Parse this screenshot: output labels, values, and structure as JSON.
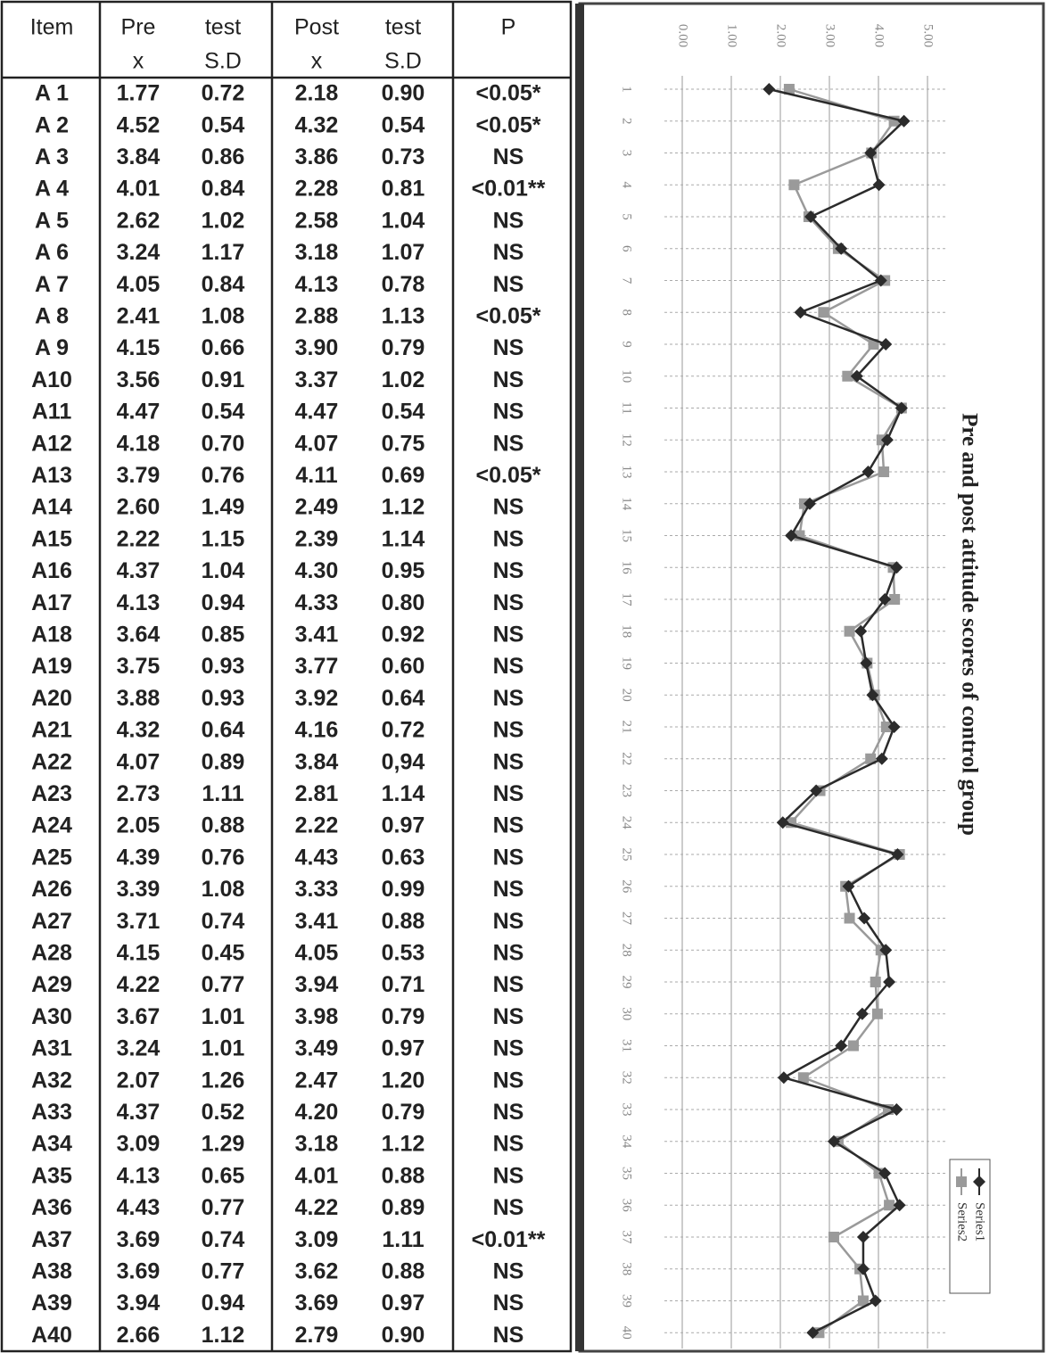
{
  "table": {
    "header": [
      [
        "Item",
        "Pre",
        "test",
        "Post",
        "test",
        "P"
      ],
      [
        "",
        "x",
        "S.D",
        "x",
        "S.D",
        ""
      ]
    ],
    "rows": [
      [
        "A 1",
        "1.77",
        "0.72",
        "2.18",
        "0.90",
        "<0.05*"
      ],
      [
        "A 2",
        "4.52",
        "0.54",
        "4.32",
        "0.54",
        "<0.05*"
      ],
      [
        "A 3",
        "3.84",
        "0.86",
        "3.86",
        "0.73",
        "NS"
      ],
      [
        "A 4",
        "4.01",
        "0.84",
        "2.28",
        "0.81",
        "<0.01**"
      ],
      [
        "A 5",
        "2.62",
        "1.02",
        "2.58",
        "1.04",
        "NS"
      ],
      [
        "A 6",
        "3.24",
        "1.17",
        "3.18",
        "1.07",
        "NS"
      ],
      [
        "A 7",
        "4.05",
        "0.84",
        "4.13",
        "0.78",
        "NS"
      ],
      [
        "A 8",
        "2.41",
        "1.08",
        "2.88",
        "1.13",
        "<0.05*"
      ],
      [
        "A 9",
        "4.15",
        "0.66",
        "3.90",
        "0.79",
        "NS"
      ],
      [
        "A10",
        "3.56",
        "0.91",
        "3.37",
        "1.02",
        "NS"
      ],
      [
        "A11",
        "4.47",
        "0.54",
        "4.47",
        "0.54",
        "NS"
      ],
      [
        "A12",
        "4.18",
        "0.70",
        "4.07",
        "0.75",
        "NS"
      ],
      [
        "A13",
        "3.79",
        "0.76",
        "4.11",
        "0.69",
        "<0.05*"
      ],
      [
        "A14",
        "2.60",
        "1.49",
        "2.49",
        "1.12",
        "NS"
      ],
      [
        "A15",
        "2.22",
        "1.15",
        "2.39",
        "1.14",
        "NS"
      ],
      [
        "A16",
        "4.37",
        "1.04",
        "4.30",
        "0.95",
        "NS"
      ],
      [
        "A17",
        "4.13",
        "0.94",
        "4.33",
        "0.80",
        "NS"
      ],
      [
        "A18",
        "3.64",
        "0.85",
        "3.41",
        "0.92",
        "NS"
      ],
      [
        "A19",
        "3.75",
        "0.93",
        "3.77",
        "0.60",
        "NS"
      ],
      [
        "A20",
        "3.88",
        "0.93",
        "3.92",
        "0.64",
        "NS"
      ],
      [
        "A21",
        "4.32",
        "0.64",
        "4.16",
        "0.72",
        "NS"
      ],
      [
        "A22",
        "4.07",
        "0.89",
        "3.84",
        "0,94",
        "NS"
      ],
      [
        "A23",
        "2.73",
        "1.11",
        "2.81",
        "1.14",
        "NS"
      ],
      [
        "A24",
        "2.05",
        "0.88",
        "2.22",
        "0.97",
        "NS"
      ],
      [
        "A25",
        "4.39",
        "0.76",
        "4.43",
        "0.63",
        "NS"
      ],
      [
        "A26",
        "3.39",
        "1.08",
        "3.33",
        "0.99",
        "NS"
      ],
      [
        "A27",
        "3.71",
        "0.74",
        "3.41",
        "0.88",
        "NS"
      ],
      [
        "A28",
        "4.15",
        "0.45",
        "4.05",
        "0.53",
        "NS"
      ],
      [
        "A29",
        "4.22",
        "0.77",
        "3.94",
        "0.71",
        "NS"
      ],
      [
        "A30",
        "3.67",
        "1.01",
        "3.98",
        "0.79",
        "NS"
      ],
      [
        "A31",
        "3.24",
        "1.01",
        "3.49",
        "0.97",
        "NS"
      ],
      [
        "A32",
        "2.07",
        "1.26",
        "2.47",
        "1.20",
        "NS"
      ],
      [
        "A33",
        "4.37",
        "0.52",
        "4.20",
        "0.79",
        "NS"
      ],
      [
        "A34",
        "3.09",
        "1.29",
        "3.18",
        "1.12",
        "NS"
      ],
      [
        "A35",
        "4.13",
        "0.65",
        "4.01",
        "0.88",
        "NS"
      ],
      [
        "A36",
        "4.43",
        "0.77",
        "4.22",
        "0.89",
        "NS"
      ],
      [
        "A37",
        "3.69",
        "0.74",
        "3.09",
        "1.11",
        "<0.01**"
      ],
      [
        "A38",
        "3.69",
        "0.77",
        "3.62",
        "0.88",
        "NS"
      ],
      [
        "A39",
        "3.94",
        "0.94",
        "3.69",
        "0.97",
        "NS"
      ],
      [
        "A40",
        "2.66",
        "1.12",
        "2.79",
        "0.90",
        "NS"
      ]
    ]
  },
  "chart_data": {
    "type": "line",
    "title": "Pre and post attitude scores of control group",
    "categories": [
      "1",
      "2",
      "3",
      "4",
      "5",
      "6",
      "7",
      "8",
      "9",
      "10",
      "11",
      "12",
      "13",
      "14",
      "15",
      "16",
      "17",
      "18",
      "19",
      "20",
      "21",
      "22",
      "23",
      "24",
      "25",
      "26",
      "27",
      "28",
      "29",
      "30",
      "31",
      "32",
      "33",
      "34",
      "35",
      "36",
      "37",
      "38",
      "39",
      "40"
    ],
    "series": [
      {
        "name": "Series1",
        "color": "#2b2b2b",
        "marker": "diamond",
        "values": [
          1.77,
          4.52,
          3.84,
          4.01,
          2.62,
          3.24,
          4.05,
          2.41,
          4.15,
          3.56,
          4.47,
          4.18,
          3.79,
          2.6,
          2.22,
          4.37,
          4.13,
          3.64,
          3.75,
          3.88,
          4.32,
          4.07,
          2.73,
          2.05,
          4.39,
          3.39,
          3.71,
          4.15,
          4.22,
          3.67,
          3.24,
          2.07,
          4.37,
          3.09,
          4.13,
          4.43,
          3.69,
          3.69,
          3.94,
          2.66
        ]
      },
      {
        "name": "Series2",
        "color": "#9a9a9a",
        "marker": "square",
        "values": [
          2.18,
          4.32,
          3.86,
          2.28,
          2.58,
          3.18,
          4.13,
          2.88,
          3.9,
          3.37,
          4.47,
          4.07,
          4.11,
          2.49,
          2.39,
          4.3,
          4.33,
          3.41,
          3.77,
          3.92,
          4.16,
          3.84,
          2.81,
          2.22,
          4.43,
          3.33,
          3.41,
          4.05,
          3.94,
          3.98,
          3.49,
          2.47,
          4.2,
          3.18,
          4.01,
          4.22,
          3.09,
          3.62,
          3.69,
          2.79
        ]
      }
    ],
    "ylim": [
      0,
      5
    ],
    "yticks": [
      {
        "value": 0,
        "label": "0.00"
      },
      {
        "value": 1,
        "label": "1.00"
      },
      {
        "value": 2,
        "label": "2.00"
      },
      {
        "value": 3,
        "label": "3.00"
      },
      {
        "value": 4,
        "label": "4.00"
      },
      {
        "value": 5,
        "label": "5.00"
      }
    ],
    "grid": true,
    "legend": "bottom-right"
  }
}
